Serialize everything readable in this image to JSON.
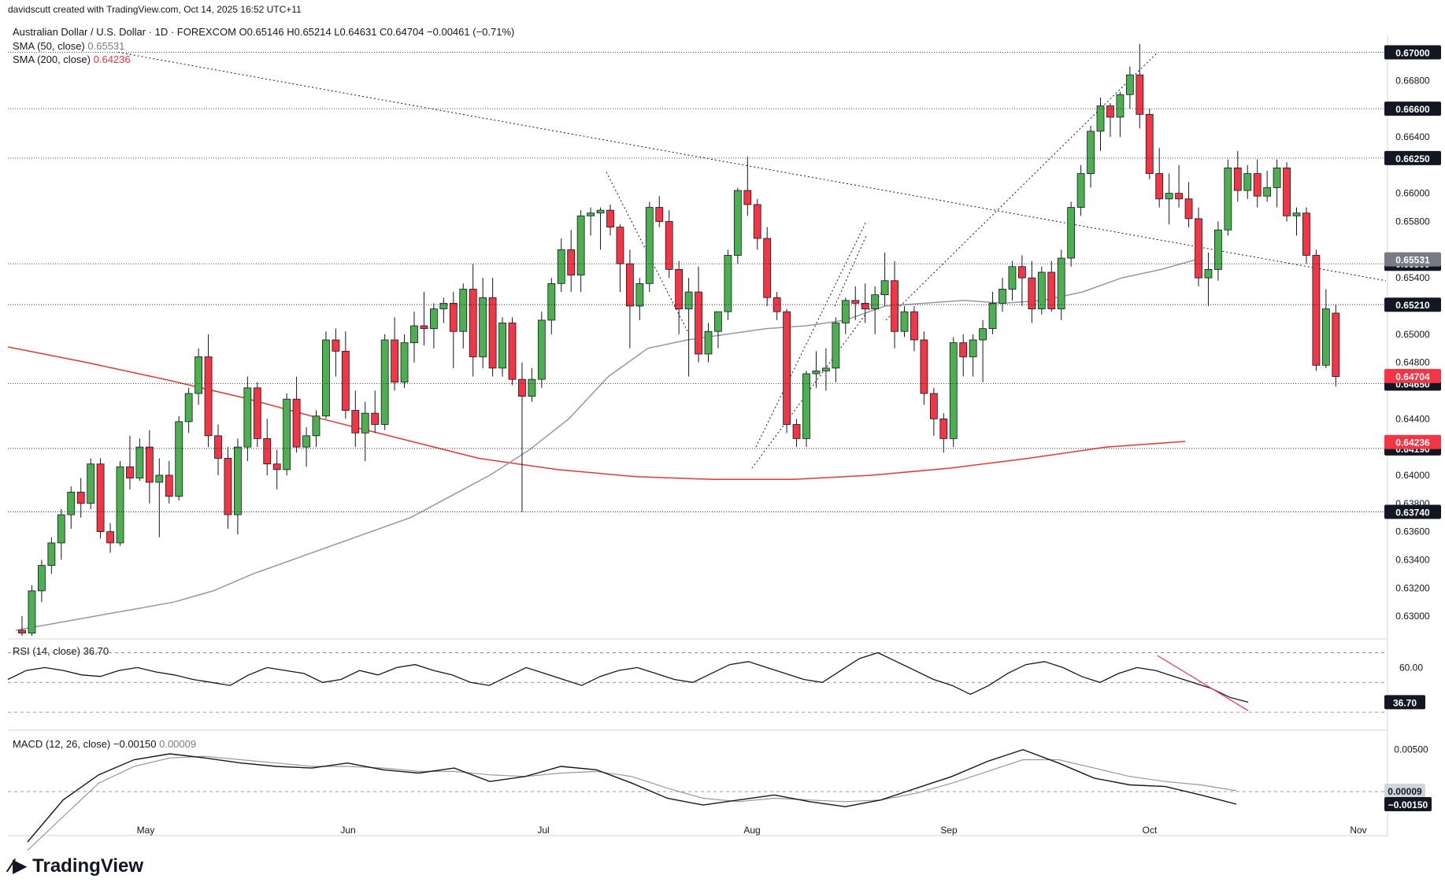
{
  "header": {
    "creator_line": "davidscutt created with TradingView.com, Oct 14, 2025 16:52 UTC+11",
    "symbol_line": "Australian Dollar / U.S. Dollar · 1D · FOREXCOM  O0.65146  H0.65214  L0.64631  C0.64704  −0.00461 (−0.71%)",
    "sma50_label": "SMA (50, close)",
    "sma50_value": "0.65531",
    "sma200_label": "SMA (200, close)",
    "sma200_value": "0.64236",
    "rsi_label": "RSI (14, close)",
    "rsi_value": "36.70",
    "macd_label": "MACD (12, 26, close)",
    "macd_value": "−0.00150",
    "macd_signal_value": "0.00009"
  },
  "brand": "TradingView",
  "colors": {
    "up": "#22ab94",
    "up_fill": "#4caf50",
    "down": "#f23645",
    "sma50": "#9598a1",
    "sma200": "#e53935",
    "text": "#131722"
  },
  "chart_data": {
    "type": "candlestick",
    "price_axis_ticks": [
      "0.66800",
      "0.66400",
      "0.66000",
      "0.65800",
      "0.65400",
      "0.65000",
      "0.64800",
      "0.64400",
      "0.64000",
      "0.63800",
      "0.63600",
      "0.63400",
      "0.63200",
      "0.63000"
    ],
    "price_tick_values": [
      0.668,
      0.664,
      0.66,
      0.658,
      0.654,
      0.65,
      0.648,
      0.644,
      0.64,
      0.638,
      0.636,
      0.634,
      0.632,
      0.63
    ],
    "time_axis_labels": [
      "May",
      "Jun",
      "Jul",
      "Aug",
      "Sep",
      "Oct",
      "Nov"
    ],
    "ylim": [
      0.6285,
      0.6712
    ],
    "horizontal_levels": [
      {
        "label": "0.67000",
        "value": 0.67
      },
      {
        "label": "0.66600",
        "value": 0.666
      },
      {
        "label": "0.66250",
        "value": 0.6625
      },
      {
        "label": "0.65500",
        "value": 0.655
      },
      {
        "label": "0.65210",
        "value": 0.6521
      },
      {
        "label": "0.64650",
        "value": 0.6465
      },
      {
        "label": "0.64190",
        "value": 0.6419
      },
      {
        "label": "0.63740",
        "value": 0.6374
      }
    ],
    "price_tags": [
      {
        "label": "0.65531",
        "value": 0.65531,
        "color": "#787b86"
      },
      {
        "label": "0.64704",
        "value": 0.64704,
        "color": "#f23645"
      },
      {
        "label": "0.64236",
        "value": 0.64236,
        "color": "#f23645"
      }
    ],
    "candles": [
      [
        0.629,
        0.63,
        0.6286,
        0.6288
      ],
      [
        0.6288,
        0.6322,
        0.6286,
        0.6318
      ],
      [
        0.6318,
        0.634,
        0.631,
        0.6336
      ],
      [
        0.6336,
        0.6356,
        0.633,
        0.6352
      ],
      [
        0.6352,
        0.6376,
        0.634,
        0.6372
      ],
      [
        0.6372,
        0.6392,
        0.6362,
        0.6388
      ],
      [
        0.6388,
        0.6398,
        0.637,
        0.638
      ],
      [
        0.638,
        0.6412,
        0.6376,
        0.6408
      ],
      [
        0.6408,
        0.6412,
        0.6355,
        0.636
      ],
      [
        0.636,
        0.6366,
        0.6345,
        0.6352
      ],
      [
        0.6352,
        0.641,
        0.635,
        0.6406
      ],
      [
        0.6406,
        0.6428,
        0.639,
        0.6398
      ],
      [
        0.6398,
        0.6426,
        0.6396,
        0.642
      ],
      [
        0.642,
        0.6432,
        0.638,
        0.6395
      ],
      [
        0.6395,
        0.6412,
        0.6356,
        0.64
      ],
      [
        0.64,
        0.641,
        0.638,
        0.6385
      ],
      [
        0.6385,
        0.6442,
        0.6382,
        0.6438
      ],
      [
        0.6438,
        0.6462,
        0.643,
        0.6458
      ],
      [
        0.6458,
        0.649,
        0.645,
        0.6484
      ],
      [
        0.6484,
        0.65,
        0.642,
        0.6428
      ],
      [
        0.6428,
        0.6436,
        0.64,
        0.6412
      ],
      [
        0.6412,
        0.642,
        0.6362,
        0.6372
      ],
      [
        0.6372,
        0.6426,
        0.6358,
        0.642
      ],
      [
        0.642,
        0.647,
        0.641,
        0.6462
      ],
      [
        0.6462,
        0.6466,
        0.642,
        0.6426
      ],
      [
        0.6426,
        0.644,
        0.64,
        0.6408
      ],
      [
        0.6408,
        0.6418,
        0.639,
        0.6404
      ],
      [
        0.6404,
        0.6458,
        0.64,
        0.6454
      ],
      [
        0.6454,
        0.647,
        0.6416,
        0.642
      ],
      [
        0.642,
        0.6434,
        0.6406,
        0.6428
      ],
      [
        0.6428,
        0.6446,
        0.642,
        0.6442
      ],
      [
        0.6442,
        0.6502,
        0.644,
        0.6496
      ],
      [
        0.6496,
        0.6504,
        0.647,
        0.6488
      ],
      [
        0.6488,
        0.6502,
        0.644,
        0.6446
      ],
      [
        0.6446,
        0.646,
        0.642,
        0.643
      ],
      [
        0.643,
        0.6452,
        0.641,
        0.6444
      ],
      [
        0.6444,
        0.646,
        0.643,
        0.6436
      ],
      [
        0.6436,
        0.65,
        0.6432,
        0.6496
      ],
      [
        0.6496,
        0.6512,
        0.646,
        0.6466
      ],
      [
        0.6466,
        0.65,
        0.6462,
        0.6494
      ],
      [
        0.6494,
        0.6516,
        0.648,
        0.6506
      ],
      [
        0.6506,
        0.653,
        0.6492,
        0.6504
      ],
      [
        0.6504,
        0.6522,
        0.649,
        0.6518
      ],
      [
        0.6518,
        0.6526,
        0.6508,
        0.6522
      ],
      [
        0.6522,
        0.653,
        0.6476,
        0.6502
      ],
      [
        0.6502,
        0.6536,
        0.649,
        0.6532
      ],
      [
        0.6532,
        0.655,
        0.647,
        0.6484
      ],
      [
        0.6484,
        0.654,
        0.6476,
        0.6526
      ],
      [
        0.6526,
        0.654,
        0.647,
        0.6476
      ],
      [
        0.6476,
        0.6512,
        0.647,
        0.6508
      ],
      [
        0.6508,
        0.6512,
        0.6464,
        0.6468
      ],
      [
        0.6468,
        0.648,
        0.6374,
        0.6456
      ],
      [
        0.6456,
        0.6476,
        0.6452,
        0.6468
      ],
      [
        0.6468,
        0.6516,
        0.6462,
        0.651
      ],
      [
        0.651,
        0.654,
        0.65,
        0.6536
      ],
      [
        0.6536,
        0.6568,
        0.653,
        0.656
      ],
      [
        0.656,
        0.6574,
        0.653,
        0.6542
      ],
      [
        0.6542,
        0.6588,
        0.653,
        0.6584
      ],
      [
        0.6584,
        0.659,
        0.657,
        0.6586
      ],
      [
        0.6586,
        0.659,
        0.656,
        0.6588
      ],
      [
        0.6588,
        0.6592,
        0.657,
        0.6576
      ],
      [
        0.6576,
        0.6578,
        0.653,
        0.655
      ],
      [
        0.655,
        0.656,
        0.649,
        0.652
      ],
      [
        0.652,
        0.654,
        0.651,
        0.6536
      ],
      [
        0.6536,
        0.6594,
        0.653,
        0.659
      ],
      [
        0.659,
        0.6598,
        0.6576,
        0.658
      ],
      [
        0.658,
        0.6588,
        0.654,
        0.6546
      ],
      [
        0.6546,
        0.6552,
        0.65,
        0.6518
      ],
      [
        0.6518,
        0.654,
        0.647,
        0.653
      ],
      [
        0.653,
        0.6548,
        0.648,
        0.6486
      ],
      [
        0.6486,
        0.6508,
        0.648,
        0.6502
      ],
      [
        0.6502,
        0.6514,
        0.649,
        0.6516
      ],
      [
        0.6516,
        0.656,
        0.651,
        0.6556
      ],
      [
        0.6556,
        0.6604,
        0.655,
        0.6602
      ],
      [
        0.6602,
        0.6626,
        0.6584,
        0.6592
      ],
      [
        0.6592,
        0.6596,
        0.656,
        0.6568
      ],
      [
        0.6568,
        0.6576,
        0.652,
        0.6526
      ],
      [
        0.6526,
        0.653,
        0.651,
        0.6516
      ],
      [
        0.6516,
        0.6518,
        0.643,
        0.6436
      ],
      [
        0.6436,
        0.644,
        0.642,
        0.6426
      ],
      [
        0.6426,
        0.6474,
        0.642,
        0.6472
      ],
      [
        0.6472,
        0.6488,
        0.6462,
        0.6474
      ],
      [
        0.6474,
        0.649,
        0.646,
        0.6476
      ],
      [
        0.6476,
        0.6512,
        0.6466,
        0.6508
      ],
      [
        0.6508,
        0.6526,
        0.65,
        0.6524
      ],
      [
        0.6524,
        0.6534,
        0.651,
        0.6522
      ],
      [
        0.6522,
        0.6536,
        0.6508,
        0.6518
      ],
      [
        0.6518,
        0.6534,
        0.65,
        0.6528
      ],
      [
        0.6528,
        0.6558,
        0.652,
        0.6538
      ],
      [
        0.6538,
        0.6552,
        0.649,
        0.6502
      ],
      [
        0.6502,
        0.652,
        0.6498,
        0.6516
      ],
      [
        0.6516,
        0.652,
        0.6488,
        0.6496
      ],
      [
        0.6496,
        0.6502,
        0.645,
        0.6458
      ],
      [
        0.6458,
        0.6462,
        0.6428,
        0.644
      ],
      [
        0.644,
        0.6444,
        0.6416,
        0.6426
      ],
      [
        0.6426,
        0.6498,
        0.642,
        0.6494
      ],
      [
        0.6494,
        0.65,
        0.647,
        0.6484
      ],
      [
        0.6484,
        0.65,
        0.647,
        0.6496
      ],
      [
        0.6496,
        0.651,
        0.6466,
        0.6504
      ],
      [
        0.6504,
        0.653,
        0.65,
        0.6522
      ],
      [
        0.6522,
        0.654,
        0.6516,
        0.6532
      ],
      [
        0.6532,
        0.6552,
        0.6524,
        0.6548
      ],
      [
        0.6548,
        0.6556,
        0.652,
        0.654
      ],
      [
        0.654,
        0.6552,
        0.6508,
        0.6518
      ],
      [
        0.6518,
        0.6548,
        0.6514,
        0.6544
      ],
      [
        0.6544,
        0.6552,
        0.6516,
        0.6518
      ],
      [
        0.6518,
        0.656,
        0.651,
        0.6554
      ],
      [
        0.6554,
        0.6594,
        0.6548,
        0.659
      ],
      [
        0.659,
        0.662,
        0.6584,
        0.6614
      ],
      [
        0.6614,
        0.6648,
        0.6604,
        0.6644
      ],
      [
        0.6644,
        0.6668,
        0.663,
        0.6662
      ],
      [
        0.6662,
        0.6664,
        0.664,
        0.6654
      ],
      [
        0.6654,
        0.6672,
        0.664,
        0.667
      ],
      [
        0.667,
        0.669,
        0.666,
        0.6684
      ],
      [
        0.6684,
        0.6706,
        0.6646,
        0.6656
      ],
      [
        0.6656,
        0.666,
        0.661,
        0.6614
      ],
      [
        0.6614,
        0.6632,
        0.659,
        0.6596
      ],
      [
        0.6596,
        0.6614,
        0.6578,
        0.66
      ],
      [
        0.66,
        0.662,
        0.659,
        0.6596
      ],
      [
        0.6596,
        0.6608,
        0.6576,
        0.6582
      ],
      [
        0.6582,
        0.659,
        0.6534,
        0.654
      ],
      [
        0.654,
        0.6558,
        0.652,
        0.6546
      ],
      [
        0.6546,
        0.658,
        0.6538,
        0.6574
      ],
      [
        0.6574,
        0.6624,
        0.657,
        0.6618
      ],
      [
        0.6618,
        0.663,
        0.6594,
        0.6602
      ],
      [
        0.6602,
        0.662,
        0.6596,
        0.6614
      ],
      [
        0.6614,
        0.6624,
        0.659,
        0.6598
      ],
      [
        0.6598,
        0.6616,
        0.6594,
        0.6604
      ],
      [
        0.6604,
        0.6624,
        0.659,
        0.6618
      ],
      [
        0.6618,
        0.6622,
        0.658,
        0.6584
      ],
      [
        0.6584,
        0.659,
        0.657,
        0.6586
      ],
      [
        0.6586,
        0.659,
        0.655,
        0.6556
      ],
      [
        0.6556,
        0.656,
        0.6474,
        0.6478
      ],
      [
        0.6478,
        0.6532,
        0.6476,
        0.6518
      ],
      [
        0.6515,
        0.6521,
        0.6463,
        0.647
      ]
    ],
    "sma50_values": [
      0.629,
      0.6295,
      0.63,
      0.6305,
      0.631,
      0.6318,
      0.633,
      0.634,
      0.635,
      0.636,
      0.637,
      0.6385,
      0.64,
      0.6418,
      0.644,
      0.647,
      0.649,
      0.6496,
      0.65,
      0.6504,
      0.6506,
      0.651,
      0.652,
      0.6522,
      0.6524,
      0.6522,
      0.6524,
      0.653,
      0.654,
      0.6546,
      0.6554
    ],
    "sma200_values": [
      0.6491,
      0.648,
      0.6468,
      0.6455,
      0.644,
      0.6426,
      0.6412,
      0.6404,
      0.6399,
      0.6397,
      0.6397,
      0.64,
      0.6405,
      0.6412,
      0.642,
      0.6424
    ],
    "rsi": {
      "value": 36.7,
      "levels": [
        70,
        50,
        30
      ],
      "tick": "60.00",
      "series": [
        52,
        58,
        60,
        58,
        55,
        54,
        58,
        60,
        57,
        55,
        52,
        50,
        48,
        55,
        60,
        58,
        56,
        50,
        52,
        58,
        55,
        60,
        62,
        58,
        55,
        50,
        48,
        54,
        60,
        56,
        52,
        48,
        54,
        58,
        60,
        56,
        52,
        50,
        56,
        62,
        64,
        60,
        56,
        52,
        50,
        58,
        66,
        70,
        64,
        58,
        52,
        48,
        42,
        48,
        56,
        62,
        64,
        60,
        54,
        50,
        56,
        60,
        58,
        54,
        50,
        46,
        40,
        36.7
      ]
    },
    "macd": {
      "value": -0.0015,
      "signal": 9e-05,
      "ticks": [
        "0.00500"
      ]
    }
  }
}
